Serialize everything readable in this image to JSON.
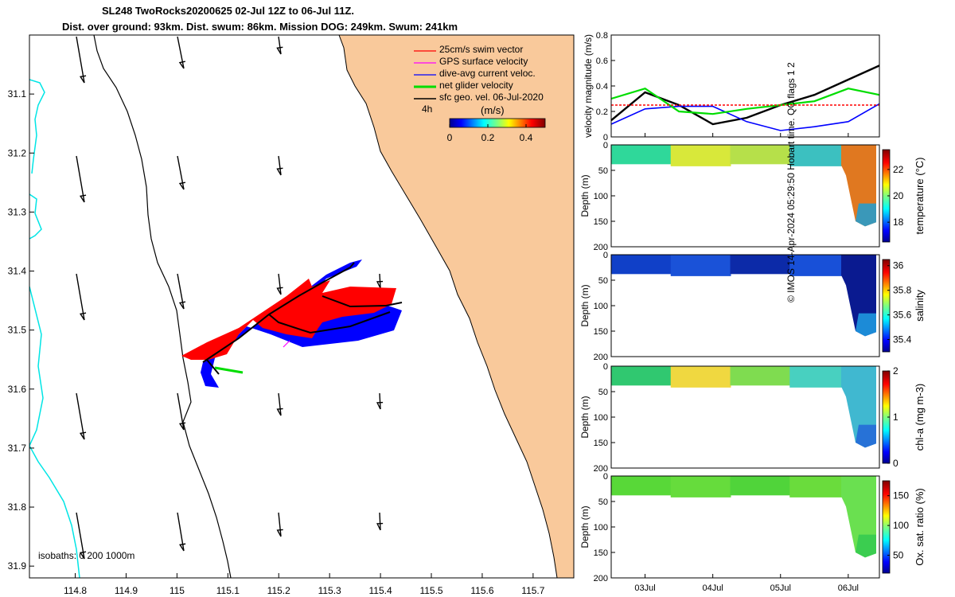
{
  "title": {
    "line1": "SL248 TwoRocks20200625 02-Jul 12Z to 06-Jul 11Z.",
    "line2": "Dist. over ground: 93km. Dist. swum: 86km. Mission DOG: 249km. Swum: 241km"
  },
  "credit": "© IMOS 14-Apr-2024 05:29:50 Hobart time. QC flags 1  2",
  "colors": {
    "land": "#f9c99b",
    "isobath": "#00e5e5",
    "swim_vector": "#ff0000",
    "gps_surface": "#ff00ff",
    "dive_avg": "#0000ff",
    "net_glider": "#00dd00",
    "sfc_geo": "#000000"
  },
  "chart_data": [
    {
      "type": "map",
      "x_ticks": [
        "114.8",
        "114.9",
        "115",
        "115.1",
        "115.2",
        "115.3",
        "115.4",
        "115.5",
        "115.6",
        "115.7"
      ],
      "x_tick_values": [
        114.8,
        114.9,
        115.0,
        115.1,
        115.2,
        115.3,
        115.4,
        115.5,
        115.6,
        115.7
      ],
      "y_ticks": [
        "31.1",
        "31.2",
        "31.3",
        "31.4",
        "31.5",
        "31.6",
        "31.7",
        "31.8",
        "31.9"
      ],
      "y_tick_values": [
        31.1,
        31.2,
        31.3,
        31.4,
        31.5,
        31.6,
        31.7,
        31.8,
        31.9
      ],
      "xlim": [
        114.71,
        115.78
      ],
      "ylim": [
        31.0,
        31.92
      ],
      "legend": {
        "placement": "top-right",
        "entries": [
          {
            "label": "25cm/s swim vector",
            "color": "#ff0000"
          },
          {
            "label": "GPS surface velocity",
            "color": "#ff00ff"
          },
          {
            "label": "dive-avg current veloc.",
            "color": "#0000ff"
          },
          {
            "label": "net glider velocity",
            "color": "#00dd00"
          },
          {
            "label": "sfc geo. vel. 06-Jul-2020",
            "color": "#000000"
          }
        ]
      },
      "colorbar": {
        "label": "(m/s)",
        "tag": "4h",
        "ticks": [
          "0",
          "0.2",
          "0.4"
        ],
        "tick_values": [
          0,
          0.2,
          0.4
        ],
        "range": [
          0,
          0.5
        ]
      },
      "isobath_label": "isobaths:  0   200  1000m"
    },
    {
      "type": "line",
      "ylabel": "velocity magnitude (m/s)",
      "ylim": [
        0,
        0.8
      ],
      "y_ticks": [
        "0",
        "0.2",
        "0.4",
        "0.6",
        "0.8"
      ],
      "y_tick_values": [
        0,
        0.2,
        0.4,
        0.6,
        0.8
      ],
      "x_days": [
        0,
        0.5,
        1,
        1.5,
        2,
        2.5,
        3,
        3.5,
        3.96
      ],
      "series": [
        {
          "color": "#000000",
          "values": [
            0.13,
            0.35,
            0.25,
            0.1,
            0.15,
            0.25,
            0.33,
            0.45,
            0.56
          ]
        },
        {
          "color": "#0000ff",
          "values": [
            0.1,
            0.22,
            0.24,
            0.24,
            0.12,
            0.05,
            0.08,
            0.12,
            0.26
          ]
        },
        {
          "color": "#00dd00",
          "values": [
            0.3,
            0.38,
            0.2,
            0.18,
            0.22,
            0.25,
            0.28,
            0.38,
            0.33
          ]
        },
        {
          "color": "#ff0000",
          "values": [
            0.25,
            0.25,
            0.25,
            0.25,
            0.25,
            0.25,
            0.25,
            0.25,
            0.25
          ]
        }
      ]
    },
    {
      "type": "heatmap",
      "ylabel": "Depth (m)",
      "ylim": [
        0,
        200
      ],
      "y_ticks": [
        "0",
        "50",
        "100",
        "150",
        "200"
      ],
      "colorbar_label": "temperature (°C)",
      "cbar_ticks": [
        "18",
        "20",
        "22"
      ],
      "cbar_values": [
        18,
        20,
        22
      ],
      "cbar_range": [
        16.5,
        23.5
      ]
    },
    {
      "type": "heatmap",
      "ylabel": "Depth (m)",
      "ylim": [
        0,
        200
      ],
      "y_ticks": [
        "0",
        "50",
        "100",
        "150",
        "200"
      ],
      "colorbar_label": "salinity",
      "cbar_ticks": [
        "35.4",
        "35.6",
        "35.8",
        "36"
      ],
      "cbar_values": [
        35.4,
        35.6,
        35.8,
        36.0
      ],
      "cbar_range": [
        35.3,
        36.05
      ]
    },
    {
      "type": "heatmap",
      "ylabel": "Depth (m)",
      "ylim": [
        0,
        200
      ],
      "y_ticks": [
        "0",
        "50",
        "100",
        "150",
        "200"
      ],
      "colorbar_label": "chl-a (mg m-3)",
      "cbar_ticks": [
        "0",
        "1",
        "2"
      ],
      "cbar_values": [
        0,
        1,
        2
      ],
      "cbar_range": [
        0,
        2
      ]
    },
    {
      "type": "heatmap",
      "ylabel": "Depth (m)",
      "ylim": [
        0,
        200
      ],
      "y_ticks": [
        "0",
        "50",
        "100",
        "150",
        "200"
      ],
      "colorbar_label": "Ox. sat. ratio (%)",
      "cbar_ticks": [
        "50",
        "100",
        "150"
      ],
      "cbar_values": [
        50,
        100,
        150
      ],
      "cbar_range": [
        20,
        175
      ],
      "x_ticks": [
        "03Jul",
        "04Jul",
        "05Jul",
        "06Jul"
      ],
      "x_tick_days": [
        0.5,
        1.5,
        2.5,
        3.5
      ]
    }
  ]
}
